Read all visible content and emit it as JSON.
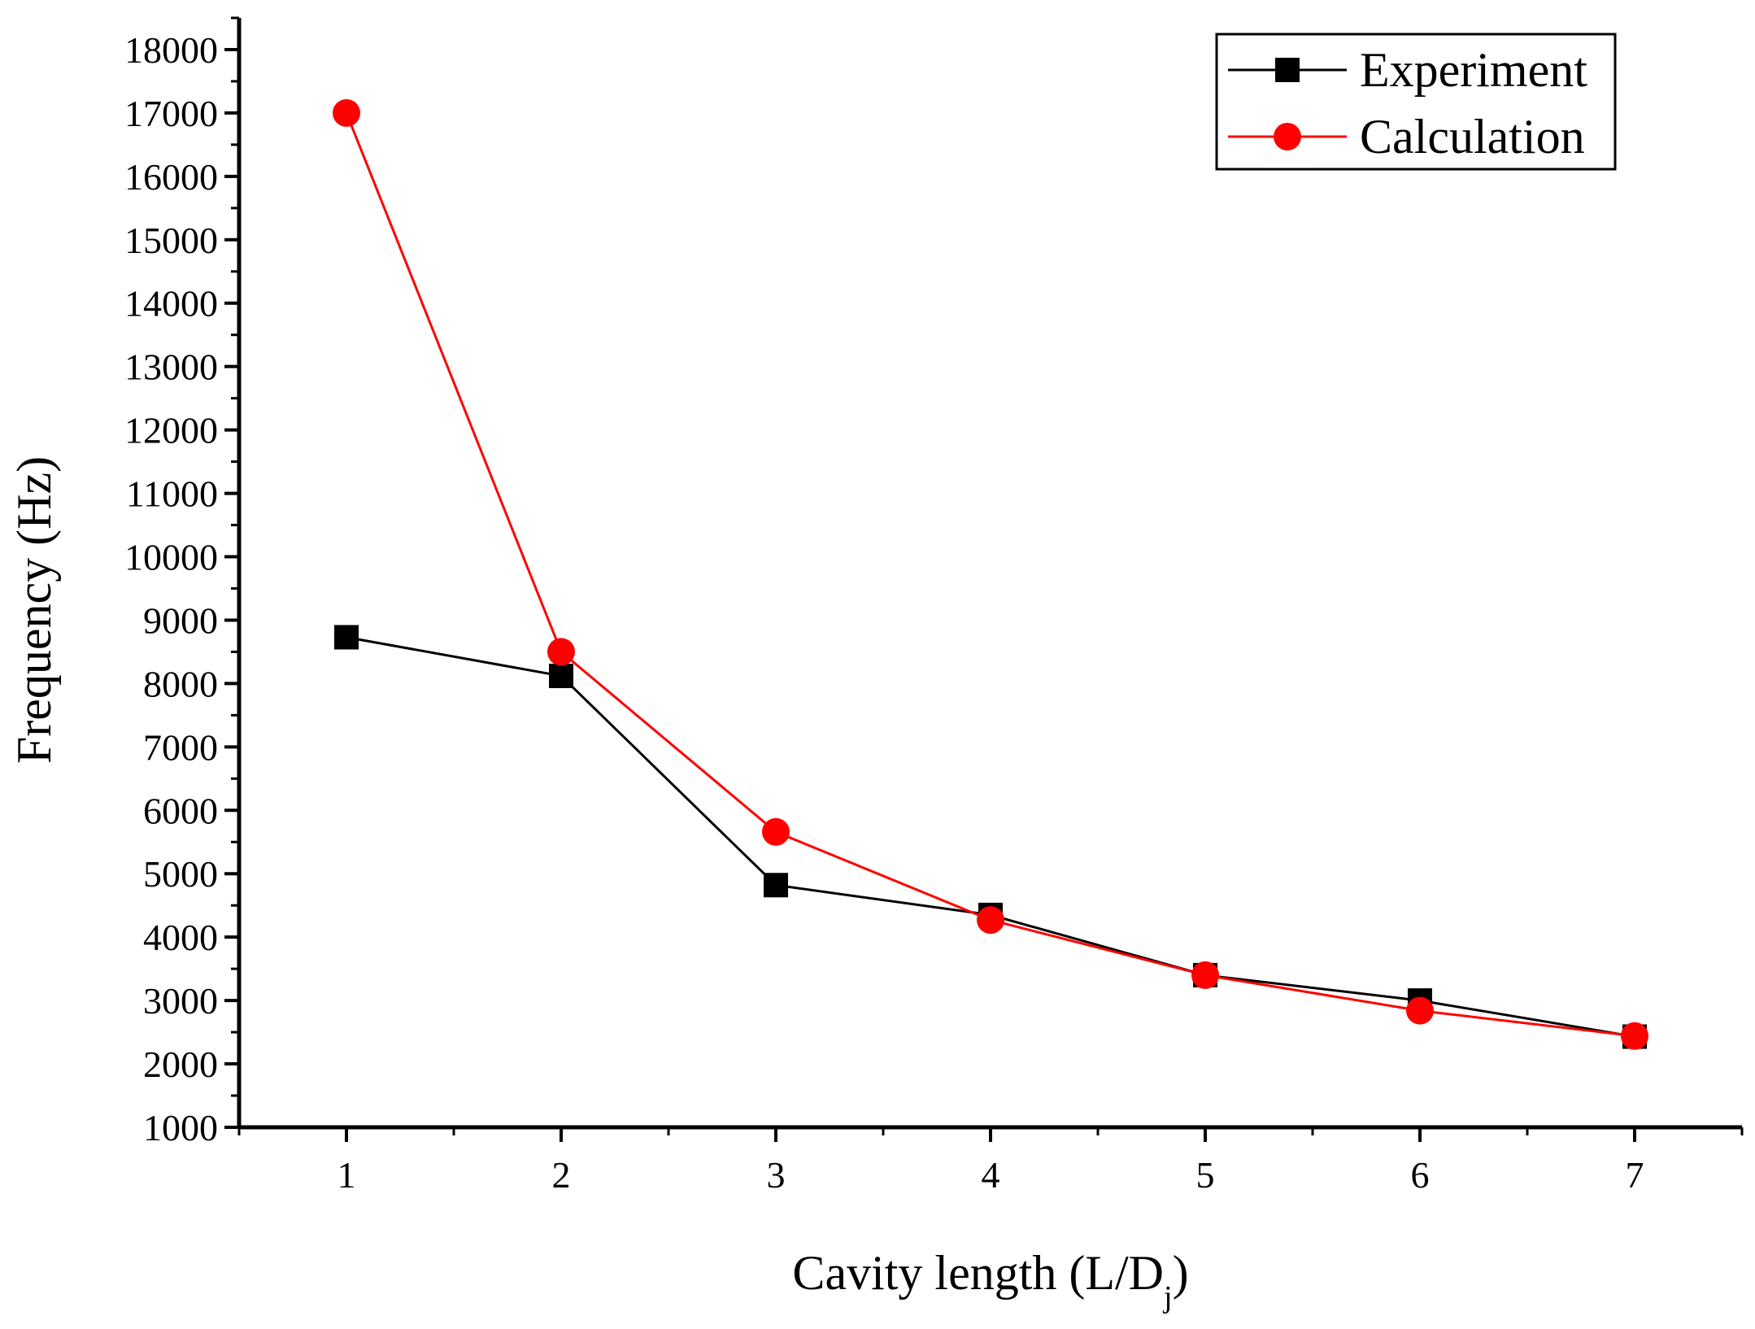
{
  "chart_data": {
    "type": "line",
    "title": "",
    "xlabel": "Cavity length (L/D",
    "xlabel_sub": "j",
    "xlabel_close": ")",
    "ylabel": "Frequency (Hz)",
    "xlim": [
      0.5,
      7.5
    ],
    "ylim": [
      1000,
      18500
    ],
    "x_ticks": [
      1,
      2,
      3,
      4,
      5,
      6,
      7
    ],
    "x_tick_labels": [
      "1",
      "2",
      "3",
      "4",
      "5",
      "6",
      "7"
    ],
    "y_ticks": [
      1000,
      2000,
      3000,
      4000,
      5000,
      6000,
      7000,
      8000,
      9000,
      10000,
      11000,
      12000,
      13000,
      14000,
      15000,
      16000,
      17000,
      18000
    ],
    "y_tick_labels": [
      "1000",
      "2000",
      "3000",
      "4000",
      "5000",
      "6000",
      "7000",
      "8000",
      "9000",
      "10000",
      "11000",
      "12000",
      "13000",
      "14000",
      "15000",
      "16000",
      "17000",
      "18000"
    ],
    "grid": false,
    "legend_position": "top-right",
    "series": [
      {
        "name": "Experiment",
        "color": "#000000",
        "marker": "square",
        "x": [
          1,
          2,
          3,
          4,
          5,
          6,
          7
        ],
        "values": [
          8730,
          8120,
          4820,
          4350,
          3400,
          3000,
          2430
        ]
      },
      {
        "name": "Calculation",
        "color": "#ff0000",
        "marker": "circle",
        "x": [
          1,
          2,
          3,
          4,
          5,
          6,
          7
        ],
        "values": [
          17000,
          8500,
          5660,
          4270,
          3400,
          2840,
          2440
        ]
      }
    ]
  }
}
